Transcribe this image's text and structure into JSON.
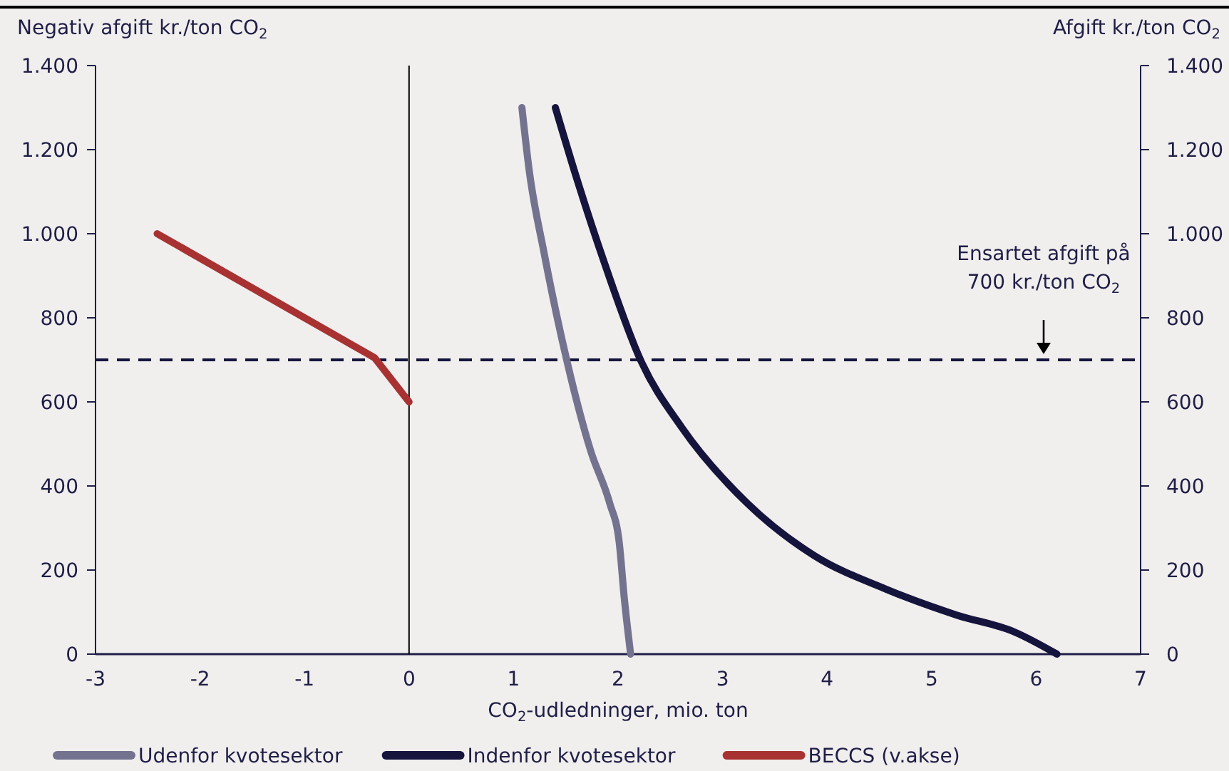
{
  "chart_data": {
    "type": "line",
    "xlabel": "CO$_{2}$-udledninger, mio. ton",
    "ylabel": "Negativ afgift kr./ton CO$_{2}$",
    "y2label": "Afgift kr./ton CO$_{2}$",
    "xlim": [
      -3,
      7
    ],
    "xticks": [
      -3,
      -2,
      -1,
      0,
      1,
      2,
      3,
      4,
      5,
      6,
      7
    ],
    "ylim": [
      0,
      1400
    ],
    "yticks": [
      0,
      200,
      400,
      600,
      800,
      {
        "value": 1000,
        "label": "1.000"
      },
      {
        "value": 1200,
        "label": "1.200"
      },
      {
        "value": 1400,
        "label": "1.400"
      }
    ],
    "y2lim": [
      0,
      1400
    ],
    "y2ticks": [
      0,
      200,
      400,
      600,
      800,
      {
        "value": 1000,
        "label": "1.000"
      },
      {
        "value": 1200,
        "label": "1.200"
      },
      {
        "value": 1400,
        "label": "1.400"
      }
    ],
    "series": [
      {
        "name": "Udenfor kvotesektor",
        "color": "#737390",
        "x": [
          1.08,
          1.15,
          1.29,
          1.51,
          1.74,
          1.92,
          2.01,
          2.06,
          2.12
        ],
        "values": [
          1300,
          1150,
          957,
          698,
          482,
          359,
          268,
          132,
          0
        ]
      },
      {
        "name": "Indenfor kvotesektor",
        "color": "#14143c",
        "x": [
          1.4,
          1.61,
          1.88,
          2.22,
          2.61,
          3.24,
          3.88,
          4.56,
          5.24,
          5.79,
          6.2
        ],
        "values": [
          1300,
          1127,
          923,
          697,
          539,
          358,
          234,
          155,
          93,
          53,
          0
        ]
      },
      {
        "name": "BECCS (v.akse)",
        "color": "#a83232",
        "x": [
          -2.41,
          -0.33,
          0
        ],
        "values": [
          1000,
          705,
          600
        ]
      }
    ],
    "ref_lines": [
      {
        "axis": "y",
        "value": 700,
        "color": "#14143c",
        "line_style": "dashed"
      },
      {
        "axis": "x",
        "value": 0,
        "color": "#000000",
        "line_style": "solid"
      }
    ],
    "annotations": [
      "Ensartet afgift på\n700 kr./ton CO$_{2}$"
    ],
    "legend": "bottom",
    "grid": false,
    "line_style": "solid"
  }
}
